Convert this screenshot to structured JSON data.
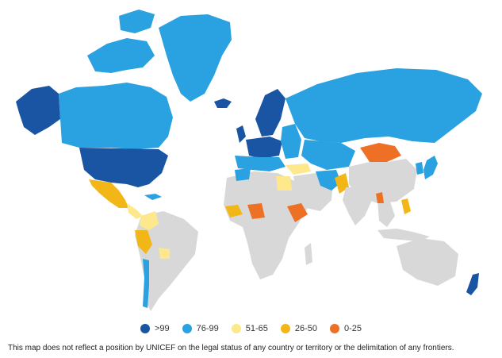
{
  "colors": {
    "gt99": "#1a55a3",
    "c76_99": "#2aa1e0",
    "c51_65": "#fde98c",
    "c26_50": "#f2b716",
    "c0_25": "#ee7024",
    "nodata": "#d8d8d8"
  },
  "legend": {
    "items": [
      {
        "label": ">99",
        "color": "#1a55a3"
      },
      {
        "label": "76-99",
        "color": "#2aa1e0"
      },
      {
        "label": "51-65",
        "color": "#fde98c"
      },
      {
        "label": "26-50",
        "color": "#f2b716"
      },
      {
        "label": "0-25",
        "color": "#ee7024"
      }
    ]
  },
  "disclaimer": "This map does not reflect a position by UNICEF on the legal status of any country or territory or the delimitation of any frontiers."
}
